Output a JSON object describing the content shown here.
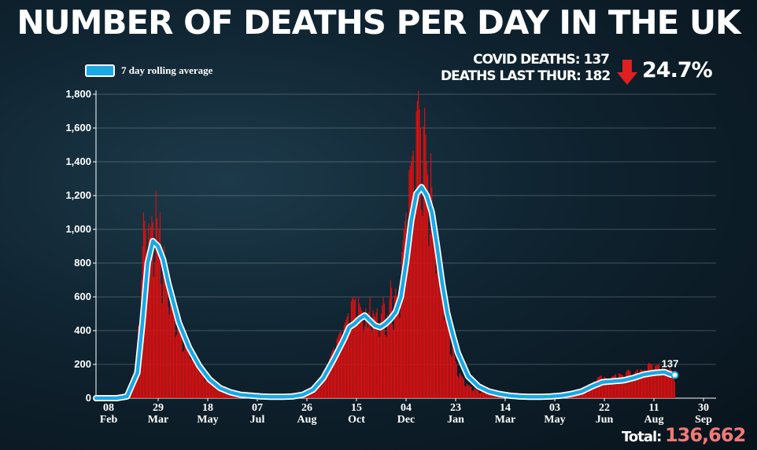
{
  "title": "NUMBER OF DEATHS PER DAY IN THE UK",
  "legend": {
    "label": "7 day rolling average",
    "swatch_color": "#1aa8e6"
  },
  "stats": {
    "covid_deaths": "COVID DEATHS: 137",
    "deaths_last_thur": "DEATHS LAST THUR: 182",
    "change": "24.7%",
    "change_direction": "down",
    "arrow_color": "#e02020"
  },
  "total": {
    "label": "Total:",
    "value": "136,662"
  },
  "chart_data": {
    "type": "bar",
    "title": "NUMBER OF DEATHS PER DAY IN THE UK",
    "xlabel": "",
    "ylabel": "",
    "ylim": [
      0,
      1800
    ],
    "yticks": [
      "0",
      "200",
      "400",
      "600",
      "800",
      "1,000",
      "1,200",
      "1,400",
      "1,600",
      "1,800"
    ],
    "xticks": [
      {
        "day": "08",
        "month": "Feb"
      },
      {
        "day": "29",
        "month": "Mar"
      },
      {
        "day": "18",
        "month": "May"
      },
      {
        "day": "07",
        "month": "Jul"
      },
      {
        "day": "26",
        "month": "Aug"
      },
      {
        "day": "15",
        "month": "Oct"
      },
      {
        "day": "04",
        "month": "Dec"
      },
      {
        "day": "23",
        "month": "Jan"
      },
      {
        "day": "14",
        "month": "Mar"
      },
      {
        "day": "03",
        "month": "May"
      },
      {
        "day": "22",
        "month": "Jun"
      },
      {
        "day": "11",
        "month": "Aug"
      },
      {
        "day": "30",
        "month": "Sep"
      }
    ],
    "bar_color": "#e01010",
    "line_color": "#1aa8e6",
    "grid": true,
    "end_label": "137",
    "series": [
      {
        "name": "7 day rolling average",
        "type": "line",
        "points": [
          [
            0,
            0
          ],
          [
            20,
            0
          ],
          [
            30,
            10
          ],
          [
            40,
            150
          ],
          [
            45,
            450
          ],
          [
            50,
            800
          ],
          [
            55,
            930
          ],
          [
            60,
            900
          ],
          [
            65,
            820
          ],
          [
            70,
            680
          ],
          [
            80,
            450
          ],
          [
            90,
            300
          ],
          [
            100,
            190
          ],
          [
            110,
            110
          ],
          [
            120,
            60
          ],
          [
            130,
            35
          ],
          [
            140,
            20
          ],
          [
            150,
            15
          ],
          [
            160,
            10
          ],
          [
            170,
            8
          ],
          [
            180,
            8
          ],
          [
            190,
            10
          ],
          [
            200,
            20
          ],
          [
            210,
            50
          ],
          [
            220,
            120
          ],
          [
            230,
            230
          ],
          [
            240,
            350
          ],
          [
            245,
            420
          ],
          [
            250,
            440
          ],
          [
            255,
            470
          ],
          [
            260,
            490
          ],
          [
            265,
            460
          ],
          [
            270,
            430
          ],
          [
            275,
            420
          ],
          [
            280,
            440
          ],
          [
            285,
            470
          ],
          [
            290,
            510
          ],
          [
            295,
            600
          ],
          [
            300,
            800
          ],
          [
            305,
            1050
          ],
          [
            310,
            1210
          ],
          [
            315,
            1250
          ],
          [
            320,
            1200
          ],
          [
            325,
            1100
          ],
          [
            330,
            900
          ],
          [
            335,
            680
          ],
          [
            340,
            500
          ],
          [
            345,
            380
          ],
          [
            350,
            270
          ],
          [
            355,
            200
          ],
          [
            360,
            130
          ],
          [
            370,
            70
          ],
          [
            380,
            40
          ],
          [
            390,
            25
          ],
          [
            400,
            15
          ],
          [
            410,
            10
          ],
          [
            420,
            8
          ],
          [
            430,
            8
          ],
          [
            440,
            10
          ],
          [
            450,
            15
          ],
          [
            460,
            25
          ],
          [
            470,
            40
          ],
          [
            480,
            70
          ],
          [
            490,
            95
          ],
          [
            500,
            100
          ],
          [
            510,
            105
          ],
          [
            520,
            120
          ],
          [
            530,
            140
          ],
          [
            540,
            150
          ],
          [
            550,
            155
          ],
          [
            556,
            140
          ],
          [
            560,
            137
          ]
        ]
      },
      {
        "name": "Daily deaths",
        "type": "bar",
        "points": [
          [
            30,
            15
          ],
          [
            35,
            80
          ],
          [
            40,
            300
          ],
          [
            42,
            560
          ],
          [
            44,
            700
          ],
          [
            46,
            1100
          ],
          [
            48,
            1000
          ],
          [
            50,
            1120
          ],
          [
            52,
            950
          ],
          [
            54,
            1080
          ],
          [
            56,
            1000
          ],
          [
            58,
            1230
          ],
          [
            60,
            900
          ],
          [
            62,
            1100
          ],
          [
            64,
            780
          ],
          [
            66,
            900
          ],
          [
            68,
            700
          ],
          [
            70,
            750
          ],
          [
            72,
            620
          ],
          [
            74,
            560
          ],
          [
            76,
            480
          ],
          [
            78,
            520
          ],
          [
            80,
            430
          ],
          [
            82,
            470
          ],
          [
            84,
            380
          ],
          [
            86,
            400
          ],
          [
            88,
            330
          ],
          [
            90,
            340
          ],
          [
            95,
            280
          ],
          [
            100,
            230
          ],
          [
            105,
            150
          ],
          [
            110,
            120
          ],
          [
            115,
            90
          ],
          [
            120,
            70
          ],
          [
            125,
            50
          ],
          [
            130,
            40
          ],
          [
            135,
            30
          ],
          [
            140,
            25
          ],
          [
            150,
            18
          ],
          [
            160,
            12
          ],
          [
            170,
            10
          ],
          [
            180,
            10
          ],
          [
            190,
            12
          ],
          [
            200,
            25
          ],
          [
            210,
            60
          ],
          [
            215,
            90
          ],
          [
            220,
            150
          ],
          [
            225,
            220
          ],
          [
            230,
            300
          ],
          [
            235,
            380
          ],
          [
            240,
            430
          ],
          [
            245,
            520
          ],
          [
            248,
            600
          ],
          [
            250,
            580
          ],
          [
            253,
            640
          ],
          [
            255,
            560
          ],
          [
            258,
            500
          ],
          [
            260,
            590
          ],
          [
            263,
            420
          ],
          [
            265,
            600
          ],
          [
            268,
            520
          ],
          [
            270,
            480
          ],
          [
            273,
            560
          ],
          [
            275,
            450
          ],
          [
            278,
            600
          ],
          [
            280,
            520
          ],
          [
            283,
            480
          ],
          [
            285,
            700
          ],
          [
            288,
            560
          ],
          [
            290,
            650
          ],
          [
            293,
            520
          ],
          [
            295,
            800
          ],
          [
            298,
            1000
          ],
          [
            300,
            1100
          ],
          [
            303,
            1350
          ],
          [
            305,
            1400
          ],
          [
            308,
            1500
          ],
          [
            310,
            1700
          ],
          [
            312,
            1820
          ],
          [
            314,
            1600
          ],
          [
            316,
            1500
          ],
          [
            318,
            1720
          ],
          [
            320,
            1400
          ],
          [
            322,
            1250
          ],
          [
            324,
            1450
          ],
          [
            326,
            1050
          ],
          [
            328,
            900
          ],
          [
            330,
            1150
          ],
          [
            332,
            800
          ],
          [
            334,
            600
          ],
          [
            336,
            780
          ],
          [
            338,
            500
          ],
          [
            340,
            560
          ],
          [
            342,
            380
          ],
          [
            345,
            320
          ],
          [
            348,
            220
          ],
          [
            352,
            150
          ],
          [
            356,
            110
          ],
          [
            360,
            80
          ],
          [
            365,
            60
          ],
          [
            370,
            45
          ],
          [
            375,
            35
          ],
          [
            380,
            28
          ],
          [
            390,
            22
          ],
          [
            400,
            15
          ],
          [
            410,
            12
          ],
          [
            420,
            10
          ],
          [
            430,
            10
          ],
          [
            440,
            12
          ],
          [
            450,
            20
          ],
          [
            460,
            30
          ],
          [
            470,
            45
          ],
          [
            475,
            60
          ],
          [
            480,
            90
          ],
          [
            485,
            120
          ],
          [
            490,
            140
          ],
          [
            495,
            110
          ],
          [
            500,
            130
          ],
          [
            505,
            150
          ],
          [
            510,
            135
          ],
          [
            515,
            170
          ],
          [
            520,
            140
          ],
          [
            525,
            180
          ],
          [
            530,
            160
          ],
          [
            535,
            210
          ],
          [
            540,
            190
          ],
          [
            545,
            200
          ],
          [
            550,
            170
          ],
          [
            555,
            182
          ],
          [
            560,
            137
          ]
        ]
      }
    ]
  }
}
